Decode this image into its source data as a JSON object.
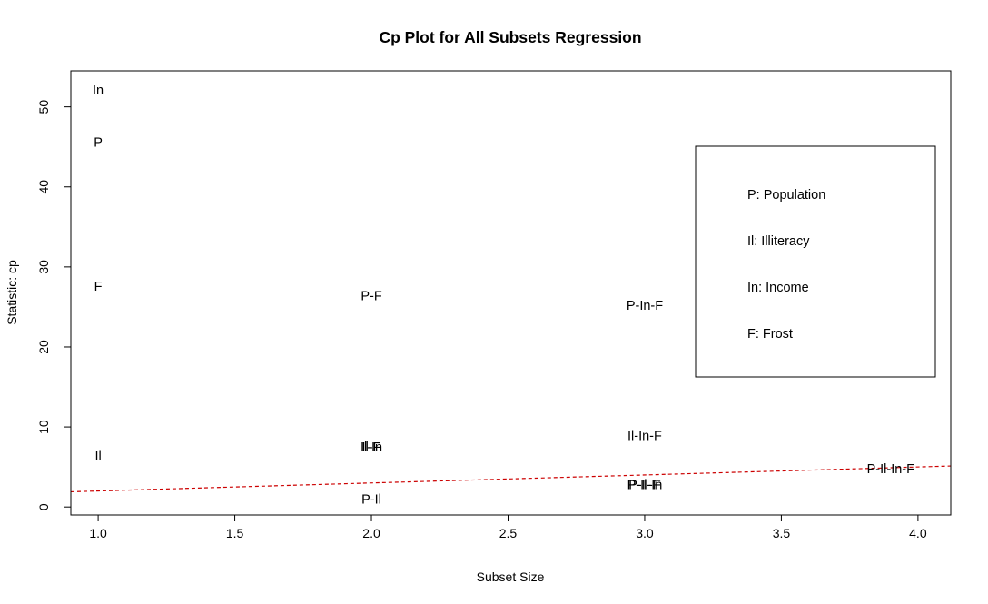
{
  "chart_data": {
    "type": "scatter",
    "title": "Cp Plot for All Subsets Regression",
    "xlabel": "Subset Size",
    "ylabel": "Statistic: cp",
    "xlim": [
      0.9,
      4.12
    ],
    "ylim": [
      -1,
      54.5
    ],
    "x_ticks": [
      1.0,
      1.5,
      2.0,
      2.5,
      3.0,
      3.5,
      4.0
    ],
    "x_tick_labels": [
      "1.0",
      "1.5",
      "2.0",
      "2.5",
      "3.0",
      "3.5",
      "4.0"
    ],
    "y_ticks": [
      0,
      10,
      20,
      30,
      40,
      50
    ],
    "y_tick_labels": [
      "0",
      "10",
      "20",
      "30",
      "40",
      "50"
    ],
    "points": [
      {
        "label": "In",
        "x": 1,
        "y": 52
      },
      {
        "label": "P",
        "x": 1,
        "y": 45.5
      },
      {
        "label": "F",
        "x": 1,
        "y": 27.5
      },
      {
        "label": "Il",
        "x": 1,
        "y": 6.3
      },
      {
        "label": "P-F",
        "x": 2,
        "y": 26.3
      },
      {
        "label": "Il-F",
        "x": 2,
        "y": 7.4
      },
      {
        "label": "Il-In",
        "x": 2,
        "y": 7.4
      },
      {
        "label": "P-Il",
        "x": 2,
        "y": 0.9
      },
      {
        "label": "P-In-F",
        "x": 3,
        "y": 25.1
      },
      {
        "label": "Il-In-F",
        "x": 3,
        "y": 8.8
      },
      {
        "label": "P-Il-F",
        "x": 3,
        "y": 2.7
      },
      {
        "label": "P-Il-In",
        "x": 3,
        "y": 2.7
      },
      {
        "label": "P-Il-In-F",
        "x": 3.9,
        "y": 4.7
      }
    ],
    "reference_line": {
      "slope": 1,
      "intercept": 1,
      "style": "dashed",
      "color": "#cc0000"
    },
    "legend": {
      "position": "right",
      "entries": [
        "P: Population",
        "Il: Illiteracy",
        "In: Income",
        "F: Frost"
      ]
    },
    "grid": false
  }
}
